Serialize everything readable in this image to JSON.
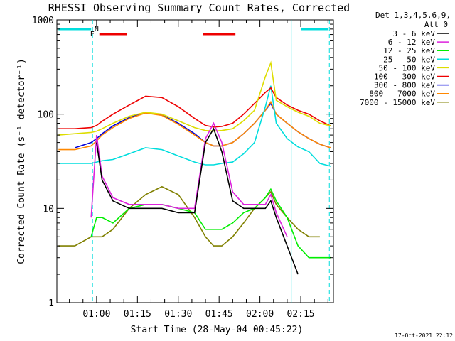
{
  "title": "RHESSI Observing Summary Count Rates, Corrected",
  "footer_date": "17-Oct-2021 22:12",
  "legend_header": [
    "Det 1,3,4,5,6,9,",
    "Att 0"
  ],
  "chart_data": {
    "type": "line",
    "title": "RHESSI Observing Summary Count Rates, Corrected",
    "xlabel": "Start Time (28-May-04 00:45:22)",
    "ylabel": "Corrected Count Rate (s⁻¹ detector⁻¹)",
    "yscale": "log",
    "ylim": [
      1,
      1000
    ],
    "ytick_labels": [
      "1",
      "10",
      "100",
      "1000"
    ],
    "xlim_minutes": [
      45.4,
      147
    ],
    "xtick_labels": [
      "01:00",
      "01:15",
      "01:30",
      "01:45",
      "02:00",
      "02:15"
    ],
    "xtick_minutes": [
      60,
      75,
      90,
      105,
      120,
      135
    ],
    "grid": false,
    "legend_position": "right",
    "x": [
      46,
      52,
      58,
      60,
      62,
      66,
      72,
      78,
      84,
      90,
      96,
      100,
      103,
      106,
      110,
      114,
      118,
      122,
      124,
      126,
      130,
      134,
      138,
      142,
      146
    ],
    "series": [
      {
        "name": "3 - 6 keV",
        "color": "#000000",
        "values": [
          null,
          null,
          null,
          50,
          20,
          12,
          10,
          10,
          10,
          9,
          9,
          50,
          70,
          40,
          12,
          10,
          10,
          10,
          12,
          8,
          4,
          2,
          null,
          null,
          null
        ]
      },
      {
        "name": "6 - 12 keV",
        "color": "#dd22dd",
        "values": [
          null,
          null,
          8,
          60,
          22,
          13,
          11,
          11,
          11,
          10,
          10,
          55,
          80,
          50,
          15,
          11,
          11,
          11,
          14,
          9,
          5,
          null,
          null,
          null,
          null
        ]
      },
      {
        "name": "12 - 25 keV",
        "color": "#00ee00",
        "values": [
          null,
          null,
          5,
          8,
          8,
          7,
          10,
          11,
          11,
          10,
          9,
          6,
          6,
          6,
          7,
          9,
          10,
          13,
          16,
          12,
          8,
          4,
          3,
          3,
          3
        ]
      },
      {
        "name": "25 - 50 keV",
        "color": "#00dddd",
        "values": [
          30,
          30,
          30,
          31,
          32,
          33,
          38,
          44,
          42,
          36,
          31,
          29,
          29,
          30,
          31,
          38,
          50,
          120,
          200,
          80,
          55,
          45,
          40,
          30,
          28
        ]
      },
      {
        "name": "50 - 100 keV",
        "color": "#dddd00",
        "values": [
          60,
          62,
          64,
          66,
          70,
          80,
          95,
          105,
          100,
          85,
          72,
          67,
          66,
          67,
          70,
          85,
          110,
          250,
          350,
          140,
          120,
          105,
          95,
          80,
          75
        ]
      },
      {
        "name": "100 - 300 keV",
        "color": "#ee0000",
        "values": [
          70,
          70,
          72,
          76,
          84,
          100,
          125,
          155,
          150,
          120,
          90,
          76,
          73,
          74,
          80,
          100,
          130,
          170,
          190,
          150,
          125,
          110,
          100,
          85,
          75
        ]
      },
      {
        "name": "300 - 800 keV",
        "color": "#0000dd",
        "values": [
          null,
          44,
          50,
          55,
          62,
          75,
          92,
          105,
          98,
          80,
          62,
          50,
          46,
          46,
          50,
          62,
          80,
          110,
          130,
          100,
          80,
          65,
          55,
          48,
          44
        ]
      },
      {
        "name": "800 - 7000 keV",
        "color": "#ff8800",
        "values": [
          42,
          42,
          46,
          52,
          60,
          72,
          90,
          103,
          97,
          78,
          60,
          50,
          46,
          46,
          50,
          62,
          80,
          110,
          135,
          100,
          80,
          65,
          55,
          48,
          44
        ]
      },
      {
        "name": "7000 - 15000 keV",
        "color": "#808000",
        "values": [
          4,
          4,
          5,
          5,
          5,
          6,
          10,
          14,
          17,
          14,
          8,
          5,
          4,
          4,
          5,
          7,
          10,
          13,
          15,
          11,
          8,
          6,
          5,
          5,
          null
        ]
      }
    ],
    "attenuator_markers": [
      {
        "label": "F",
        "color": "#ee0000"
      },
      {
        "label": "N",
        "color": "#00dddd"
      }
    ],
    "bars": [
      {
        "color": "#00dddd",
        "x": [
          46,
          58
        ]
      },
      {
        "color": "#ee0000",
        "x": [
          61,
          71
        ]
      },
      {
        "color": "#ee0000",
        "x": [
          99,
          111
        ]
      },
      {
        "color": "#00dddd",
        "x": [
          135,
          145
        ]
      }
    ],
    "vlines": [
      {
        "x": 58.5,
        "color": "#00dddd",
        "dashed": true
      },
      {
        "x": 131.5,
        "color": "#00dddd",
        "dashed": false
      },
      {
        "x": 145.5,
        "color": "#00dddd",
        "dashed": true
      }
    ]
  }
}
